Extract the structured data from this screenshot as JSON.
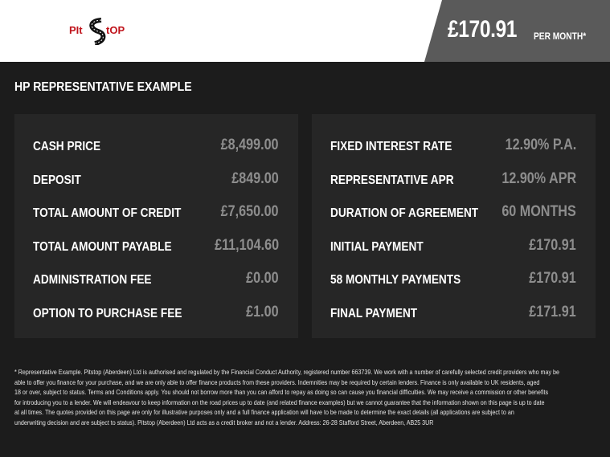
{
  "header": {
    "logo_text": "PIT STOP",
    "price": "£170.91",
    "per_month": "PER MONTH*"
  },
  "title": "HP REPRESENTATIVE EXAMPLE",
  "left": [
    {
      "label": "CASH PRICE",
      "value": "£8,499.00"
    },
    {
      "label": "DEPOSIT",
      "value": "£849.00"
    },
    {
      "label": "TOTAL AMOUNT OF CREDIT",
      "value": "£7,650.00"
    },
    {
      "label": "TOTAL AMOUNT PAYABLE",
      "value": "£11,104.60"
    },
    {
      "label": "ADMINISTRATION FEE",
      "value": "£0.00"
    },
    {
      "label": "OPTION TO PURCHASE FEE",
      "value": "£1.00"
    }
  ],
  "right": [
    {
      "label": "FIXED INTEREST RATE",
      "value": "12.90% P.A."
    },
    {
      "label": "REPRESENTATIVE APR",
      "value": "12.90% APR"
    },
    {
      "label": "DURATION OF AGREEMENT",
      "value": "60 MONTHS"
    },
    {
      "label": "INITIAL PAYMENT",
      "value": "£170.91"
    },
    {
      "label": "58 MONTHLY PAYMENTS",
      "value": "£170.91"
    },
    {
      "label": "FINAL PAYMENT",
      "value": "£171.91"
    }
  ],
  "footer": [
    "* Representative Example. Pitstop (Aberdeen) Ltd is authorised and regulated by the Financial Conduct Authority, registered number 663739. We work with a number of carefully selected credit providers who may be",
    "able to offer you finance for your purchase, and we are only able to offer finance products from these providers. Indemnities may be required by certain lenders. Finance is only available to UK residents, aged",
    "18 or over, subject to status. Terms and Conditions apply. You should not borrow more than you can afford to repay as doing so can cause you financial difficulties. We may receive a commission or other benefits",
    "for introducing you to a lender. We will endeavour to keep information on the road prices up to date (and related finance examples) but we cannot guarantee that the information shown on this page is up to date",
    "at all times. The quotes provided on this page are only for illustrative purposes only and a full finance application will have to be made to determine the exact details (all applications are subject to an",
    "underwriting decision and are subject to status). Pitstop (Aberdeen) Ltd acts as a credit broker and not a lender. Address: 26-28 Stafford Street, Aberdeen, AB25 3UR"
  ],
  "colors": {
    "background": "#1c1c1c",
    "panel": "#262626",
    "price_box": "#5a5a5a",
    "logo_red": "#c0141c",
    "value_grey": "#8d8d8d"
  }
}
